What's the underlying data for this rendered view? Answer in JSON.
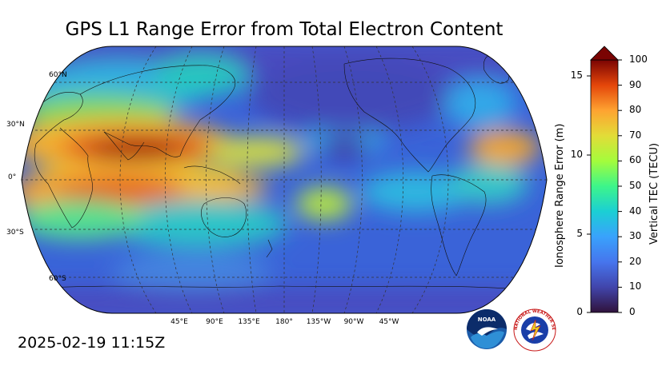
{
  "title": "GPS L1 Range Error from Total Electron Content",
  "timestamp": "2025-02-19 11:15Z",
  "map": {
    "projection": "robinson",
    "central_longitude": 180,
    "lat_labels": [
      "60°N",
      "30°N",
      "0°",
      "30°S",
      "60°S"
    ],
    "lon_labels": [
      "45°E",
      "90°E",
      "135°E",
      "180°",
      "135°W",
      "90°W",
      "45°W"
    ],
    "gridlines": true
  },
  "colorbar": {
    "left_label": "Ionosphere Range Error (m)",
    "right_label": "Vertical TEC (TECU)",
    "left_ticks": [
      "0",
      "5",
      "10",
      "15"
    ],
    "right_ticks": [
      "0",
      "10",
      "20",
      "30",
      "40",
      "50",
      "60",
      "70",
      "80",
      "90",
      "100"
    ],
    "tec_range": [
      0,
      100
    ],
    "extend": "max",
    "colormap": "turbo"
  },
  "logos": {
    "noaa_text": "NOAA",
    "nws_text": "NATIONAL WEATHER SERVICE"
  }
}
